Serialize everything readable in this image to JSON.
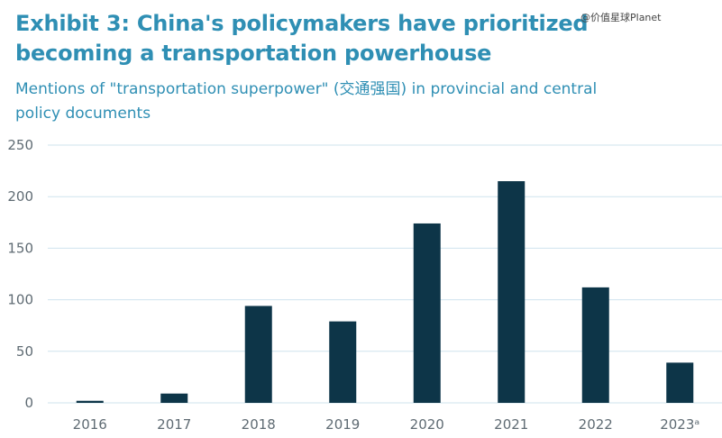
{
  "header": {
    "title": "Exhibit 3: China's policymakers have prioritized becoming a transportation powerhouse",
    "subtitle": "Mentions of \"transportation superpower\" (交通强国) in provincial and central policy documents",
    "watermark": "@价值星球Planet"
  },
  "colors": {
    "title": "#2f8fb4",
    "bar": "#0d3548",
    "gridline": "#cfe3ee",
    "tick_text": "#5f6b73"
  },
  "chart_data": {
    "type": "bar",
    "title": "",
    "xlabel": "",
    "ylabel": "",
    "categories": [
      "2016",
      "2017",
      "2018",
      "2019",
      "2020",
      "2021",
      "2022",
      "2023ᵃ"
    ],
    "values": [
      2,
      9,
      94,
      79,
      174,
      215,
      112,
      39
    ],
    "ylim": [
      0,
      250
    ],
    "yticks": [
      0,
      50,
      100,
      150,
      200,
      250
    ],
    "grid": true
  }
}
